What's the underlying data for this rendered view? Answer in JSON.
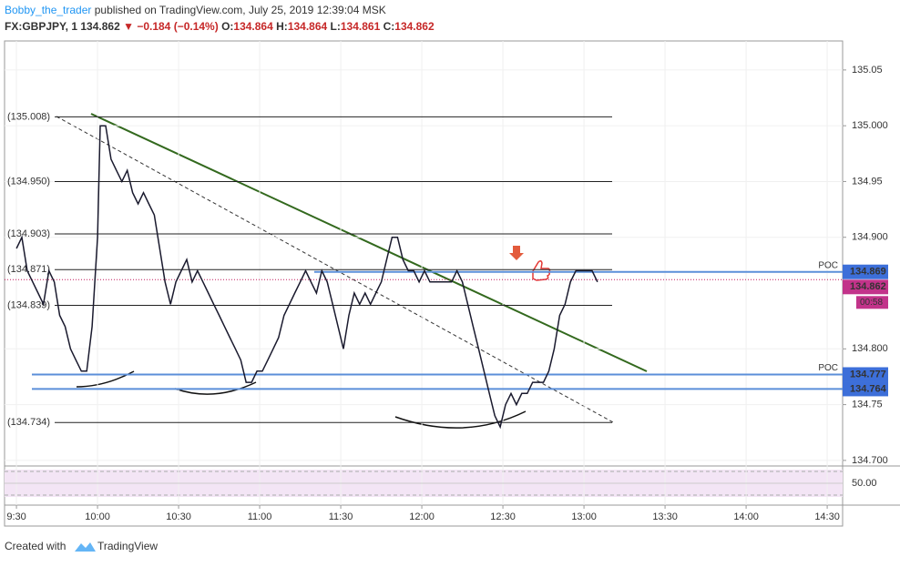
{
  "header": {
    "author": "Bobby_the_trader",
    "published": "published on TradingView.com, July 25, 2019 12:39:04 MSK",
    "symbol": "FX:GBPJPY, 1",
    "last": "134.862",
    "change": "▼ −0.184 (−0.14%)",
    "o_label": "O:",
    "o": "134.864",
    "h_label": "H:",
    "h": "134.864",
    "l_label": "L:",
    "l": "134.861",
    "c_label": "C:",
    "c": "134.862"
  },
  "footer": {
    "created": "Created with",
    "brand": "TradingView"
  },
  "chart_data": {
    "type": "line",
    "color": "#1a1a2e",
    "grid": true,
    "x": [
      570,
      572,
      574,
      576,
      578,
      580,
      582,
      584,
      586,
      588,
      590,
      592,
      594,
      596,
      598,
      600,
      601,
      603,
      605,
      607,
      609,
      611,
      613,
      615,
      617,
      619,
      621,
      623,
      625,
      627,
      629,
      631,
      633,
      635,
      637,
      639,
      641,
      643,
      645,
      647,
      649,
      651,
      653,
      655,
      657,
      659,
      661,
      663,
      665,
      667,
      669,
      671,
      673,
      675,
      677,
      679,
      681,
      683,
      685,
      687,
      689,
      691,
      693,
      695,
      697,
      699,
      701,
      703,
      705,
      707,
      709,
      711,
      713,
      715,
      717,
      719,
      721,
      723,
      725,
      727,
      729,
      731,
      733,
      735,
      737,
      739,
      741,
      743,
      745,
      747,
      749,
      751,
      753,
      755,
      757,
      759,
      761,
      763,
      765,
      767,
      769,
      771,
      773,
      775,
      777,
      779,
      781,
      783,
      785
    ],
    "values": [
      134.89,
      134.9,
      134.87,
      134.86,
      134.85,
      134.84,
      134.87,
      134.86,
      134.83,
      134.82,
      134.8,
      134.79,
      134.78,
      134.78,
      134.82,
      134.9,
      135.0,
      135.0,
      134.97,
      134.96,
      134.95,
      134.96,
      134.94,
      134.93,
      134.94,
      134.93,
      134.92,
      134.89,
      134.86,
      134.84,
      134.86,
      134.87,
      134.88,
      134.86,
      134.87,
      134.86,
      134.85,
      134.84,
      134.83,
      134.82,
      134.81,
      134.8,
      134.79,
      134.77,
      134.77,
      134.78,
      134.78,
      134.79,
      134.8,
      134.81,
      134.83,
      134.84,
      134.85,
      134.86,
      134.87,
      134.86,
      134.85,
      134.87,
      134.86,
      134.84,
      134.82,
      134.8,
      134.83,
      134.85,
      134.84,
      134.85,
      134.84,
      134.85,
      134.86,
      134.88,
      134.9,
      134.9,
      134.88,
      134.87,
      134.87,
      134.86,
      134.87,
      134.86,
      134.86,
      134.86,
      134.86,
      134.86,
      134.87,
      134.86,
      134.84,
      134.82,
      134.8,
      134.78,
      134.76,
      134.74,
      134.73,
      134.75,
      134.76,
      134.75,
      134.76,
      134.76,
      134.77,
      134.77,
      134.77,
      134.78,
      134.8,
      134.83,
      134.84,
      134.86,
      134.87,
      134.87,
      134.87,
      134.87,
      134.86
    ],
    "xlim": [
      565.6,
      875.7
    ],
    "ylim": [
      134.695,
      135.076
    ],
    "xticks": [
      {
        "value": 570,
        "label": "9:30"
      },
      {
        "value": 600,
        "label": "10:00"
      },
      {
        "value": 630,
        "label": "10:30"
      },
      {
        "value": 660,
        "label": "11:00"
      },
      {
        "value": 690,
        "label": "11:30"
      },
      {
        "value": 720,
        "label": "12:00"
      },
      {
        "value": 750,
        "label": "12:30"
      },
      {
        "value": 780,
        "label": "13:00"
      },
      {
        "value": 810,
        "label": "13:30"
      },
      {
        "value": 840,
        "label": "14:00"
      },
      {
        "value": 870,
        "label": "14:30"
      }
    ],
    "yticks": [
      135.05,
      {
        "value": 135.0,
        "label": "135.000"
      },
      134.95,
      {
        "value": 134.9,
        "label": "134.900"
      },
      {
        "value": 134.8,
        "label": "134.800"
      },
      134.75,
      {
        "value": 134.7,
        "label": "134.700"
      }
    ],
    "levels": [
      {
        "value": 135.008,
        "label": "(135.008)"
      },
      {
        "value": 134.95,
        "label": "(134.950)"
      },
      {
        "value": 134.903,
        "label": "(134.903)"
      },
      {
        "value": 134.871,
        "label": "(134.871)"
      },
      {
        "value": 134.839,
        "label": "(134.839)"
      },
      {
        "value": 134.734,
        "label": "(134.734)"
      }
    ],
    "poc_lines": [
      {
        "value": 134.869,
        "label": "134.869",
        "tag": "POC"
      },
      {
        "value": 134.777,
        "label": "134.777",
        "tag": "POC"
      },
      {
        "value": 134.764,
        "label": "134.764"
      }
    ],
    "current": {
      "value": 134.862,
      "label": "134.862",
      "countdown": "00:58"
    },
    "rsi": {
      "tick": {
        "value": 50,
        "label": "50.00"
      },
      "ylim": [
        0,
        100
      ]
    }
  }
}
